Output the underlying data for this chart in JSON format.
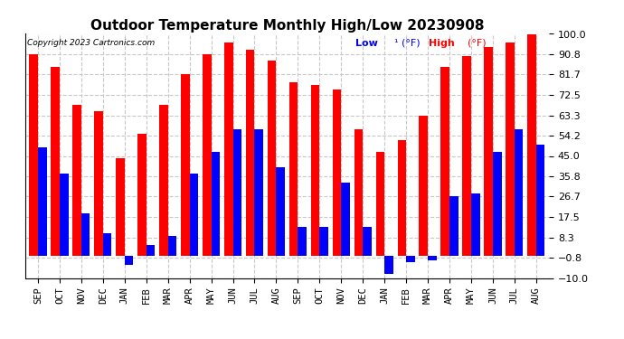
{
  "title": "Outdoor Temperature Monthly High/Low 20230908",
  "copyright": "Copyright 2023 Cartronics.com",
  "legend_low": "Low¹ (°F)",
  "legend_high": "High (°F)",
  "months": [
    "SEP",
    "OCT",
    "NOV",
    "DEC",
    "JAN",
    "FEB",
    "MAR",
    "APR",
    "MAY",
    "JUN",
    "JUL",
    "AUG",
    "SEP",
    "OCT",
    "NOV",
    "DEC",
    "JAN",
    "FEB",
    "MAR",
    "APR",
    "MAY",
    "JUN",
    "JUL",
    "AUG"
  ],
  "high_values": [
    91,
    85,
    68,
    65,
    44,
    55,
    68,
    82,
    91,
    96,
    93,
    88,
    78,
    77,
    75,
    57,
    47,
    52,
    63,
    85,
    90,
    94,
    96,
    100
  ],
  "low_values": [
    49,
    37,
    19,
    10,
    -4,
    5,
    9,
    37,
    47,
    57,
    57,
    40,
    13,
    13,
    33,
    13,
    -8,
    -3,
    -2,
    27,
    28,
    47,
    57,
    50
  ],
  "ylim": [
    -10,
    100
  ],
  "yticks": [
    -10.0,
    -0.8,
    8.3,
    17.5,
    26.7,
    35.8,
    45.0,
    54.2,
    63.3,
    72.5,
    81.7,
    90.8,
    100.0
  ],
  "high_color": "#ff0000",
  "low_color": "#0000ff",
  "background_color": "#ffffff",
  "grid_color": "#c8c8c8",
  "title_fontsize": 11,
  "bar_width": 0.4,
  "figsize": [
    6.9,
    3.75
  ],
  "dpi": 100
}
